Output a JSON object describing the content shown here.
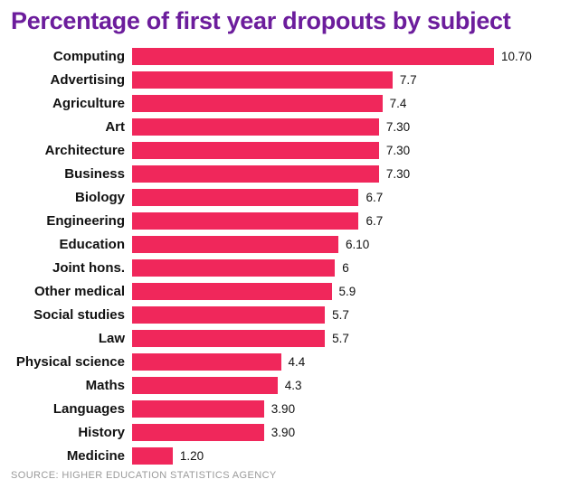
{
  "title": "Percentage of first year dropouts by subject",
  "source": "SOURCE: HIGHER EDUCATION STATISTICS AGENCY",
  "colors": {
    "bar": "#f0275b",
    "title": "#6c1d9c",
    "label": "#111111",
    "source": "#9a9a9a",
    "background": "#ffffff"
  },
  "chart_data": {
    "type": "bar",
    "orientation": "horizontal",
    "title": "Percentage of first year dropouts by subject",
    "xlabel": "",
    "ylabel": "",
    "xlim": [
      0,
      13
    ],
    "grid": false,
    "legend": false,
    "categories": [
      "Computing",
      "Advertising",
      "Agriculture",
      "Art",
      "Architecture",
      "Business",
      "Biology",
      "Engineering",
      "Education",
      "Joint hons.",
      "Other medical",
      "Social studies",
      "Law",
      "Physical science",
      "Maths",
      "Languages",
      "History",
      "Medicine"
    ],
    "values": [
      10.7,
      7.7,
      7.4,
      7.3,
      7.3,
      7.3,
      6.7,
      6.7,
      6.1,
      6,
      5.9,
      5.7,
      5.7,
      4.4,
      4.3,
      3.9,
      3.9,
      1.2
    ],
    "value_labels": [
      "10.70",
      "7.7",
      "7.4",
      "7.30",
      "7.30",
      "7.30",
      "6.7",
      "6.7",
      "6.10",
      "6",
      "5.9",
      "5.7",
      "5.7",
      "4.4",
      "4.3",
      "3.90",
      "3.90",
      "1.20"
    ],
    "source": "SOURCE: HIGHER EDUCATION STATISTICS AGENCY"
  }
}
